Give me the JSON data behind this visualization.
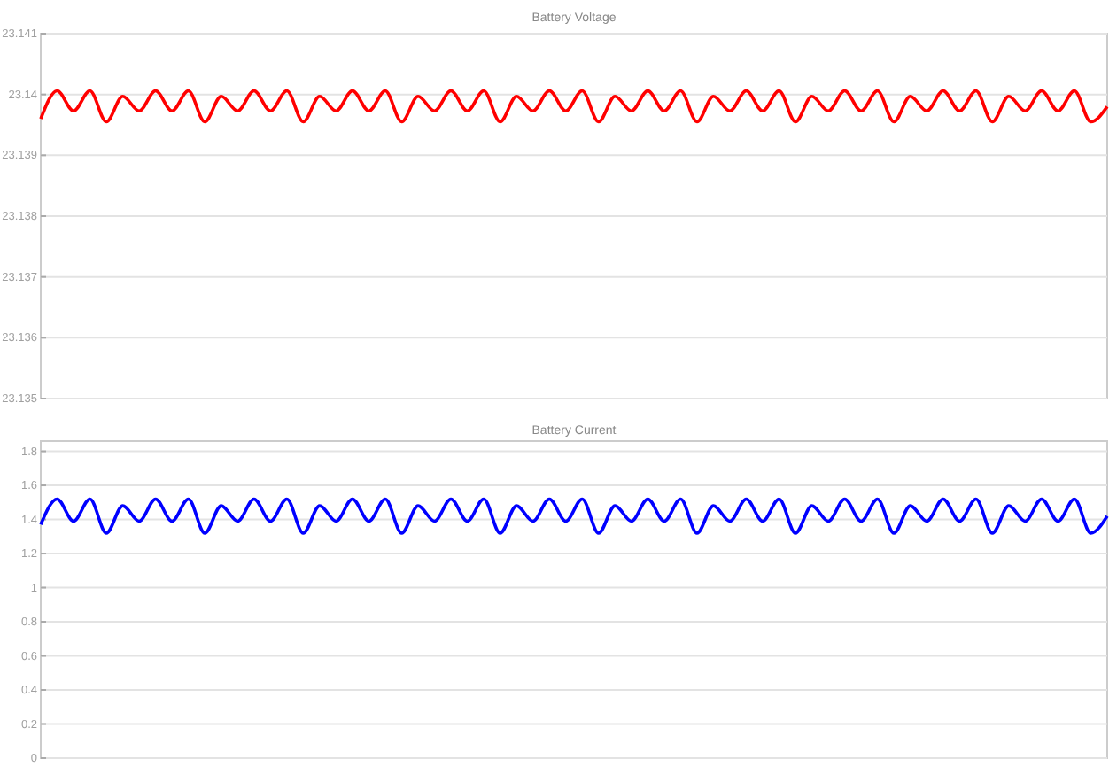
{
  "chart_data": [
    {
      "type": "line",
      "title": "Battery Voltage",
      "categories": [
        null,
        null,
        null,
        null,
        null,
        null,
        null,
        null,
        null,
        null,
        null,
        null,
        null,
        null,
        null,
        null,
        null,
        null,
        null,
        null,
        null,
        null,
        null,
        null,
        null,
        null,
        null,
        null,
        null,
        null,
        null,
        null,
        null,
        null,
        null,
        null,
        null,
        null,
        null,
        null,
        null,
        null,
        null,
        null,
        null,
        null,
        null,
        null,
        null,
        null,
        null,
        null,
        null,
        null,
        null,
        null,
        null,
        null,
        null,
        null,
        null,
        null,
        null,
        null,
        null,
        null
      ],
      "ylim": [
        23.135,
        23.141
      ],
      "yticks": [
        23.135,
        23.136,
        23.137,
        23.138,
        23.139,
        23.14,
        23.141
      ],
      "grid": "y",
      "tick_labels": "y",
      "marker": "none",
      "line_style": "solid",
      "series": [
        {
          "color": "#ff0000",
          "values": [
            23.1396,
            23.14006,
            23.13973,
            23.14006,
            23.13955,
            23.13997,
            23.13973,
            23.14006,
            23.13973,
            23.14006,
            23.13955,
            23.13997,
            23.13973,
            23.14006,
            23.13973,
            23.14006,
            23.13955,
            23.13997,
            23.13973,
            23.14006,
            23.13973,
            23.14006,
            23.13955,
            23.13997,
            23.13973,
            23.14006,
            23.13973,
            23.14006,
            23.13955,
            23.13997,
            23.13973,
            23.14006,
            23.13973,
            23.14006,
            23.13955,
            23.13997,
            23.13973,
            23.14006,
            23.13973,
            23.14006,
            23.13955,
            23.13997,
            23.13973,
            23.14006,
            23.13973,
            23.14006,
            23.13955,
            23.13997,
            23.13973,
            23.14006,
            23.13973,
            23.14006,
            23.13955,
            23.13997,
            23.13973,
            23.14006,
            23.13973,
            23.14006,
            23.13955,
            23.13997,
            23.13973,
            23.14006,
            23.13973,
            23.14006,
            23.13955,
            23.1398
          ]
        }
      ]
    },
    {
      "type": "line",
      "title": "Battery Current",
      "categories": [
        null,
        null,
        null,
        null,
        null,
        null,
        null,
        null,
        null,
        null,
        null,
        null,
        null,
        null,
        null,
        null,
        null,
        null,
        null,
        null,
        null,
        null,
        null,
        null,
        null,
        null,
        null,
        null,
        null,
        null,
        null,
        null,
        null,
        null,
        null,
        null,
        null,
        null,
        null,
        null,
        null,
        null,
        null,
        null,
        null,
        null,
        null,
        null,
        null,
        null,
        null,
        null,
        null,
        null,
        null,
        null,
        null,
        null,
        null,
        null,
        null,
        null,
        null,
        null,
        null,
        null
      ],
      "ylim": [
        0,
        1.86
      ],
      "yticks": [
        0,
        0.2,
        0.4,
        0.6,
        0.8,
        1,
        1.2,
        1.4,
        1.6,
        1.8
      ],
      "grid": "y",
      "tick_labels": "y",
      "marker": "none",
      "line_style": "solid",
      "series": [
        {
          "color": "#0000ff",
          "values": [
            1.37,
            1.52,
            1.39,
            1.52,
            1.32,
            1.48,
            1.39,
            1.52,
            1.39,
            1.52,
            1.32,
            1.48,
            1.39,
            1.52,
            1.39,
            1.52,
            1.32,
            1.48,
            1.39,
            1.52,
            1.39,
            1.52,
            1.32,
            1.48,
            1.39,
            1.52,
            1.39,
            1.52,
            1.32,
            1.48,
            1.39,
            1.52,
            1.39,
            1.52,
            1.32,
            1.48,
            1.39,
            1.52,
            1.39,
            1.52,
            1.32,
            1.48,
            1.39,
            1.52,
            1.39,
            1.52,
            1.32,
            1.48,
            1.39,
            1.52,
            1.39,
            1.52,
            1.32,
            1.48,
            1.39,
            1.52,
            1.39,
            1.52,
            1.32,
            1.48,
            1.39,
            1.52,
            1.39,
            1.52,
            1.32,
            1.42
          ]
        }
      ]
    }
  ]
}
